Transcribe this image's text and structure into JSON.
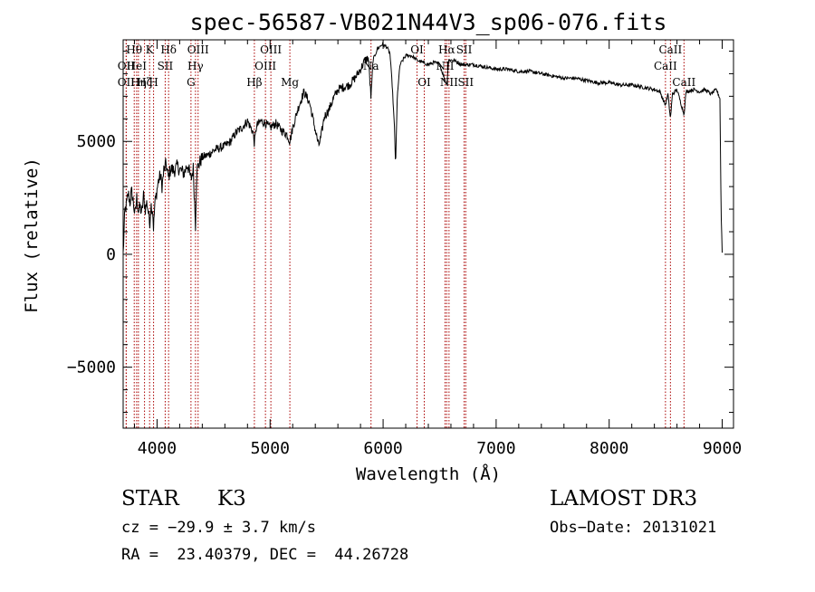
{
  "chart_data": {
    "type": "line",
    "title": "spec-56587-VB021N44V3_sp06-076.fits",
    "xlabel": "Wavelength (Å)",
    "ylabel": "Flux (relative)",
    "xlim": [
      3700,
      9100
    ],
    "ylim": [
      -7700,
      9500
    ],
    "x_ticks": [
      4000,
      5000,
      6000,
      7000,
      8000,
      9000
    ],
    "x_tick_labels": [
      "4000",
      "5000",
      "6000",
      "7000",
      "8000",
      "9000"
    ],
    "y_ticks": [
      -5000,
      0,
      5000
    ],
    "y_tick_labels": [
      "−5000",
      "0",
      "5000"
    ],
    "grid": false,
    "line_color": "#000000",
    "marker_color": "#aa0000",
    "spectral_lines": [
      {
        "wavelength": 3798,
        "label": "Hθ",
        "row": 0
      },
      {
        "wavelength": 3727,
        "label": "OII",
        "row": 1
      },
      {
        "wavelength": 3727,
        "label": "OII",
        "row": 2
      },
      {
        "wavelength": 3819,
        "label": "HeI",
        "row": 1
      },
      {
        "wavelength": 3835,
        "label": "Hη",
        "row": 2
      },
      {
        "wavelength": 3889,
        "label": "Hζ",
        "row": 2
      },
      {
        "wavelength": 3934,
        "label": "K",
        "row": 0
      },
      {
        "wavelength": 3969,
        "label": "H",
        "row": 2
      },
      {
        "wavelength": 4072,
        "label": "SII",
        "row": 1
      },
      {
        "wavelength": 4102,
        "label": "Hδ",
        "row": 0
      },
      {
        "wavelength": 4300,
        "label": "G",
        "row": 2
      },
      {
        "wavelength": 4340,
        "label": "Hγ",
        "row": 1
      },
      {
        "wavelength": 4363,
        "label": "OIII",
        "row": 0
      },
      {
        "wavelength": 4861,
        "label": "Hβ",
        "row": 2
      },
      {
        "wavelength": 4959,
        "label": "OIII",
        "row": 1
      },
      {
        "wavelength": 5007,
        "label": "OIII",
        "row": 0
      },
      {
        "wavelength": 5175,
        "label": "Mg",
        "row": 2
      },
      {
        "wavelength": 5893,
        "label": "Na",
        "row": 1
      },
      {
        "wavelength": 6300,
        "label": "OI",
        "row": 0
      },
      {
        "wavelength": 6364,
        "label": "OI",
        "row": 2
      },
      {
        "wavelength": 6548,
        "label": "NII",
        "row": 1
      },
      {
        "wavelength": 6563,
        "label": "Hα",
        "row": 0
      },
      {
        "wavelength": 6583,
        "label": "NII",
        "row": 2
      },
      {
        "wavelength": 6717,
        "label": "SII",
        "row": 0
      },
      {
        "wavelength": 6731,
        "label": "SII",
        "row": 2
      },
      {
        "wavelength": 8498,
        "label": "CaII",
        "row": 1
      },
      {
        "wavelength": 8542,
        "label": "CaII",
        "row": 0
      },
      {
        "wavelength": 8662,
        "label": "CaII",
        "row": 2
      }
    ],
    "spectrum_anchors": [
      [
        3700,
        0
      ],
      [
        3715,
        1900
      ],
      [
        3730,
        2200
      ],
      [
        3745,
        2700
      ],
      [
        3760,
        2300
      ],
      [
        3775,
        2800
      ],
      [
        3790,
        2300
      ],
      [
        3805,
        1700
      ],
      [
        3820,
        2500
      ],
      [
        3835,
        1900
      ],
      [
        3850,
        2100
      ],
      [
        3865,
        1800
      ],
      [
        3880,
        2600
      ],
      [
        3895,
        2000
      ],
      [
        3910,
        2300
      ],
      [
        3925,
        1800
      ],
      [
        3934,
        1300
      ],
      [
        3945,
        2200
      ],
      [
        3960,
        2000
      ],
      [
        3969,
        1100
      ],
      [
        3980,
        2200
      ],
      [
        3995,
        2700
      ],
      [
        4010,
        3200
      ],
      [
        4030,
        3500
      ],
      [
        4045,
        3000
      ],
      [
        4060,
        3700
      ],
      [
        4080,
        4000
      ],
      [
        4100,
        3400
      ],
      [
        4120,
        3800
      ],
      [
        4150,
        3700
      ],
      [
        4180,
        3900
      ],
      [
        4210,
        3700
      ],
      [
        4240,
        3600
      ],
      [
        4270,
        4000
      ],
      [
        4300,
        3300
      ],
      [
        4320,
        3800
      ],
      [
        4340,
        1300
      ],
      [
        4350,
        3700
      ],
      [
        4370,
        4000
      ],
      [
        4400,
        4300
      ],
      [
        4450,
        4400
      ],
      [
        4500,
        4600
      ],
      [
        4550,
        4700
      ],
      [
        4600,
        4800
      ],
      [
        4650,
        5000
      ],
      [
        4700,
        5400
      ],
      [
        4750,
        5600
      ],
      [
        4800,
        5900
      ],
      [
        4850,
        5400
      ],
      [
        4861,
        4900
      ],
      [
        4880,
        5700
      ],
      [
        4920,
        5900
      ],
      [
        4960,
        5800
      ],
      [
        5000,
        5600
      ],
      [
        5050,
        5800
      ],
      [
        5100,
        5500
      ],
      [
        5150,
        5300
      ],
      [
        5175,
        5000
      ],
      [
        5200,
        5600
      ],
      [
        5250,
        6500
      ],
      [
        5300,
        7200
      ],
      [
        5350,
        6700
      ],
      [
        5400,
        5500
      ],
      [
        5430,
        4800
      ],
      [
        5450,
        5200
      ],
      [
        5480,
        6100
      ],
      [
        5520,
        6400
      ],
      [
        5560,
        6900
      ],
      [
        5600,
        7300
      ],
      [
        5650,
        7400
      ],
      [
        5700,
        7500
      ],
      [
        5750,
        7800
      ],
      [
        5800,
        8200
      ],
      [
        5840,
        8600
      ],
      [
        5870,
        8700
      ],
      [
        5893,
        6900
      ],
      [
        5910,
        8600
      ],
      [
        5950,
        9100
      ],
      [
        5990,
        9300
      ],
      [
        6030,
        9200
      ],
      [
        6060,
        8900
      ],
      [
        6080,
        7500
      ],
      [
        6100,
        5600
      ],
      [
        6110,
        3900
      ],
      [
        6125,
        7000
      ],
      [
        6150,
        8400
      ],
      [
        6200,
        8800
      ],
      [
        6250,
        8800
      ],
      [
        6300,
        8600
      ],
      [
        6350,
        8500
      ],
      [
        6400,
        8400
      ],
      [
        6450,
        8500
      ],
      [
        6500,
        8400
      ],
      [
        6563,
        7500
      ],
      [
        6580,
        8600
      ],
      [
        6620,
        8600
      ],
      [
        6700,
        8400
      ],
      [
        6800,
        8400
      ],
      [
        6900,
        8300
      ],
      [
        7000,
        8200
      ],
      [
        7100,
        8200
      ],
      [
        7200,
        8100
      ],
      [
        7300,
        8100
      ],
      [
        7400,
        8000
      ],
      [
        7500,
        7900
      ],
      [
        7600,
        7800
      ],
      [
        7700,
        7800
      ],
      [
        7800,
        7700
      ],
      [
        7900,
        7600
      ],
      [
        8000,
        7600
      ],
      [
        8100,
        7500
      ],
      [
        8200,
        7500
      ],
      [
        8300,
        7400
      ],
      [
        8400,
        7300
      ],
      [
        8450,
        7200
      ],
      [
        8498,
        6600
      ],
      [
        8520,
        7100
      ],
      [
        8542,
        6000
      ],
      [
        8560,
        7100
      ],
      [
        8600,
        7300
      ],
      [
        8662,
        6200
      ],
      [
        8680,
        7200
      ],
      [
        8750,
        7300
      ],
      [
        8800,
        7200
      ],
      [
        8850,
        7300
      ],
      [
        8900,
        7100
      ],
      [
        8950,
        7300
      ],
      [
        8980,
        6900
      ],
      [
        8990,
        2000
      ],
      [
        9000,
        100
      ]
    ]
  },
  "info": {
    "object_type": "STAR",
    "subclass": "K3",
    "survey": "LAMOST DR3",
    "redshift_line": "cz = −29.9 ± 3.7 km/s",
    "obs_date_line": "Obs−Date: 20131021",
    "coords_line": "RA =  23.40379, DEC =  44.26728"
  }
}
